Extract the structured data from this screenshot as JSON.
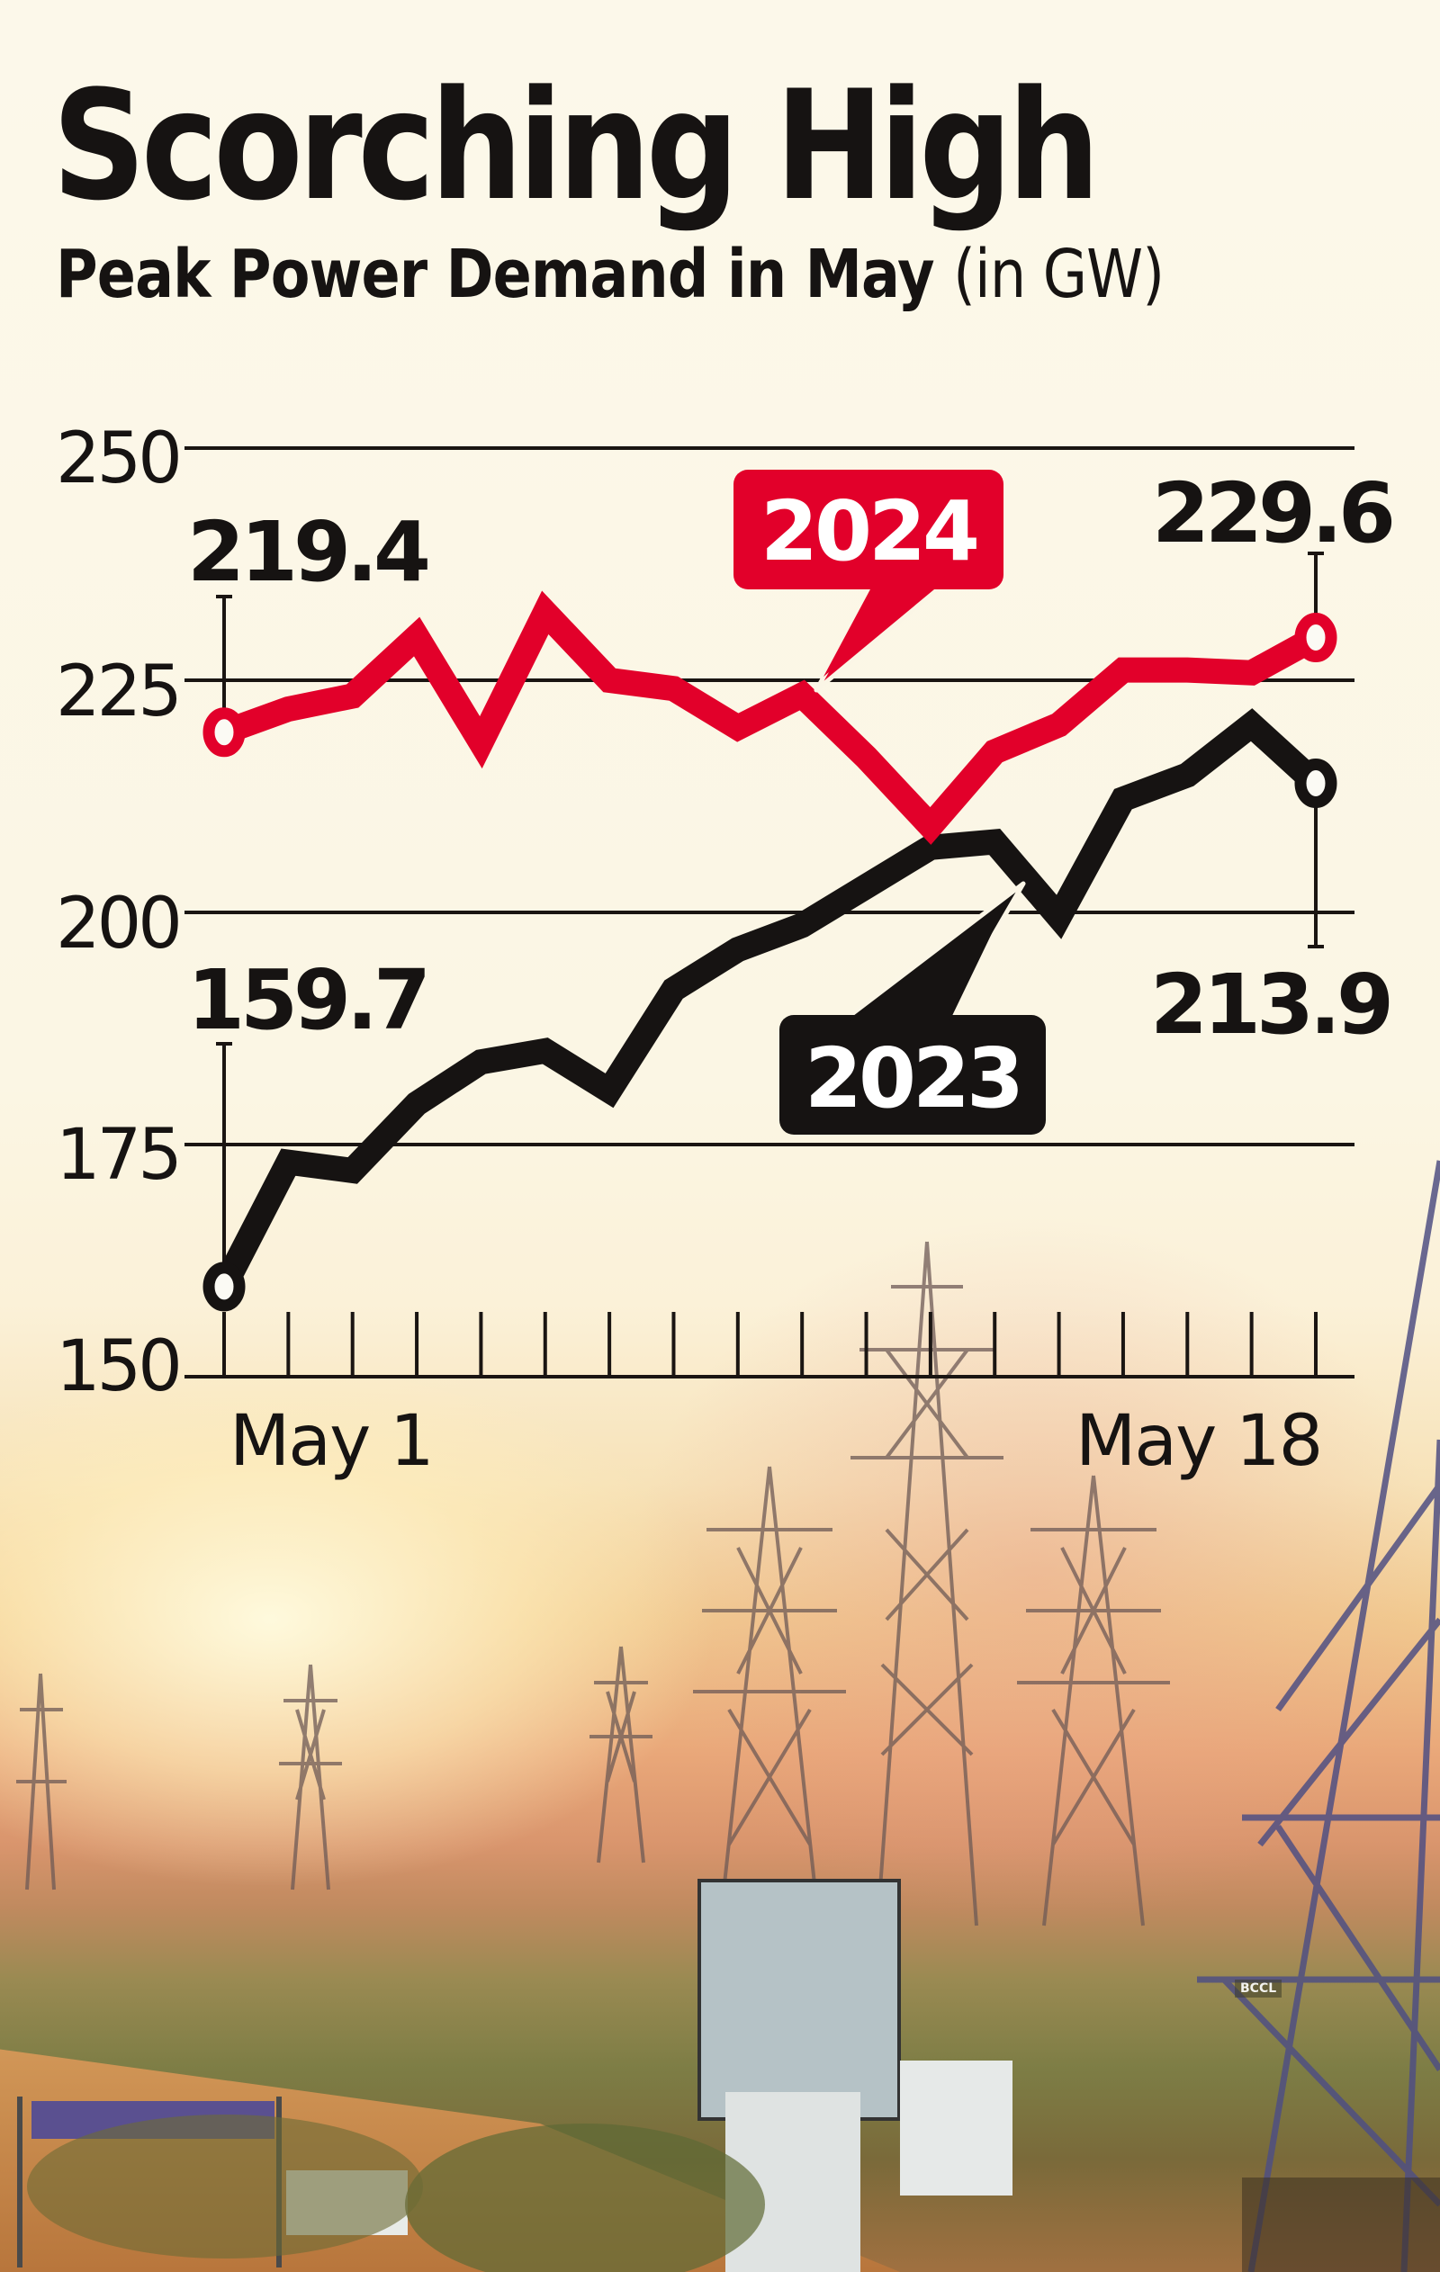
{
  "header": {
    "title": "Scorching High",
    "subtitle": "Peak Power Demand in May",
    "unit": "(in GW)"
  },
  "colors": {
    "series_2024": "#e2002a",
    "series_2023": "#161312",
    "grid": "#1a1512",
    "background": "#fbf6e6"
  },
  "chart_data": {
    "type": "line",
    "title": "Scorching High",
    "subtitle": "Peak Power Demand in May (in GW)",
    "xlabel": "",
    "ylabel": "GW",
    "ylim": [
      150,
      250
    ],
    "yticks": [
      150,
      175,
      200,
      225,
      250
    ],
    "x": [
      1,
      2,
      3,
      4,
      5,
      6,
      7,
      8,
      9,
      10,
      11,
      12,
      13,
      14,
      15,
      16,
      17,
      18
    ],
    "x_tick_labels": {
      "first": "May 1",
      "last": "May 18"
    },
    "grid": true,
    "legend": "inline callouts",
    "series": [
      {
        "name": "2024",
        "color": "#e2002a",
        "values": [
          219.4,
          221.9,
          223.3,
          229.7,
          218.3,
          232.3,
          225.0,
          224.1,
          219.9,
          223.4,
          216.7,
          209.3,
          217.3,
          220.2,
          226.1,
          226.1,
          225.8,
          229.6
        ],
        "start_label": "219.4",
        "end_label": "229.6"
      },
      {
        "name": "2023",
        "color": "#161312",
        "values": [
          159.7,
          173.1,
          172.2,
          179.4,
          183.9,
          185.1,
          180.8,
          191.7,
          196.0,
          198.6,
          202.8,
          207.0,
          207.6,
          199.5,
          212.2,
          214.8,
          220.2,
          213.9
        ],
        "start_label": "159.7",
        "end_label": "213.9"
      }
    ]
  },
  "callouts": {
    "series_2024_tag": "2024",
    "series_2023_tag": "2023"
  },
  "axis": {
    "y_labels": [
      "250",
      "225",
      "200",
      "175",
      "150"
    ],
    "x_first": "May 1",
    "x_last": "May 18"
  },
  "photo_credit": "BCCL"
}
